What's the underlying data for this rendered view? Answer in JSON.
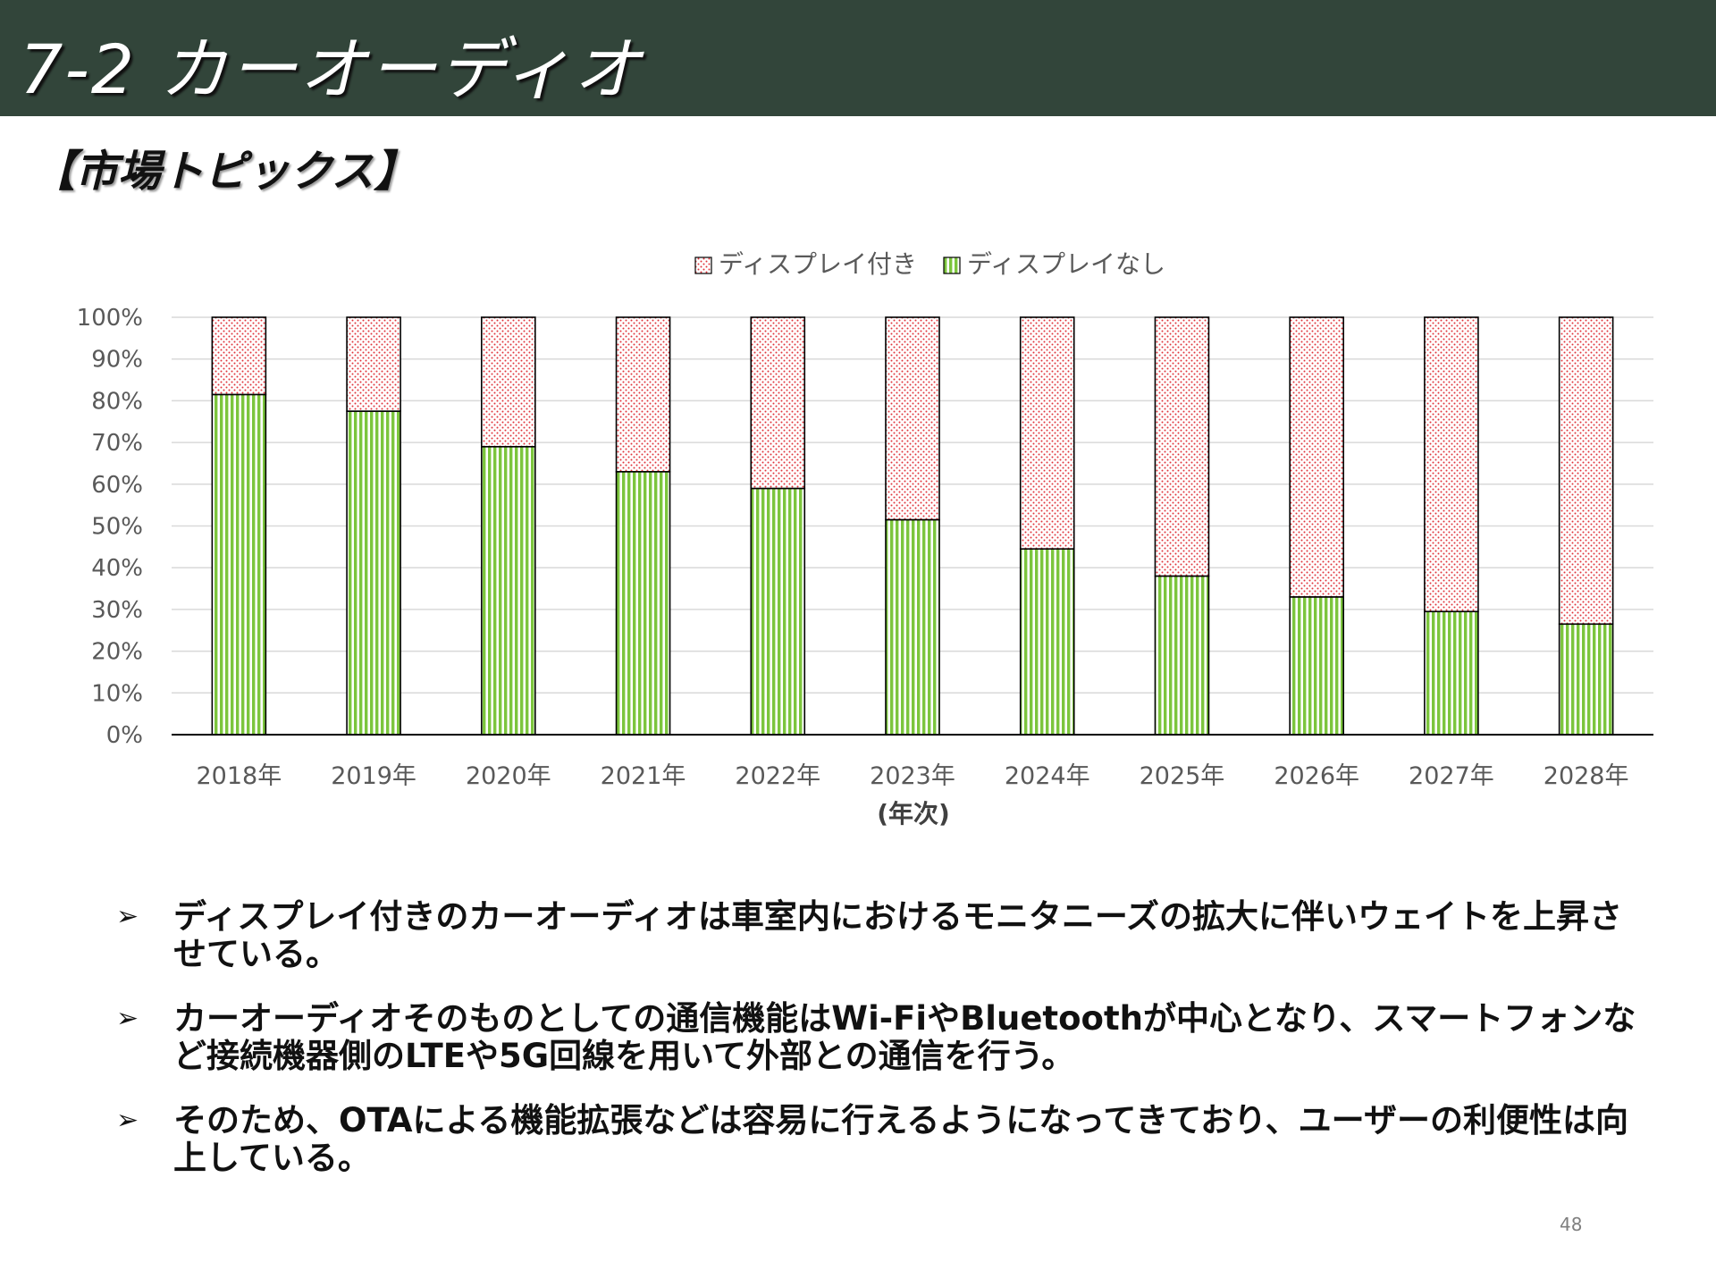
{
  "header": {
    "title": "7-2 カーオーディオ"
  },
  "section": {
    "heading": "【市場トピックス】"
  },
  "chart_data": {
    "type": "bar",
    "stacked": true,
    "categories": [
      "2018年",
      "2019年",
      "2020年",
      "2021年",
      "2022年",
      "2023年",
      "2024年",
      "2025年",
      "2026年",
      "2027年",
      "2028年"
    ],
    "series": [
      {
        "name": "ディスプレイ付き",
        "values": [
          18.5,
          22.5,
          31,
          37,
          41,
          48.5,
          55.5,
          62,
          67,
          70.5,
          73.5
        ],
        "color": "#e0343c",
        "pattern": "dots",
        "role": "upper segment"
      },
      {
        "name": "ディスプレイなし",
        "values": [
          81.5,
          77.5,
          69,
          63,
          59,
          51.5,
          44.5,
          38,
          33,
          29.5,
          26.5
        ],
        "color": "#7cc53d",
        "pattern": "vertical-stripes",
        "role": "lower segment"
      }
    ],
    "y_ticks": [
      "0%",
      "10%",
      "20%",
      "30%",
      "40%",
      "50%",
      "60%",
      "70%",
      "80%",
      "90%",
      "100%"
    ],
    "ylim": [
      0,
      100
    ],
    "xlabel": "(年次)",
    "ylabel": "",
    "legend_position": "top-center",
    "grid": true
  },
  "bullets": [
    {
      "marker": "➢",
      "text": "ディスプレイ付きのカーオーディオは車室内におけるモニタニーズの拡大に伴いウェイトを上昇させている。"
    },
    {
      "marker": "➢",
      "text": "カーオーディオそのものとしての通信機能はWi-FiやBluetoothが中心となり、スマートフォンなど接続機器側のLTEや5G回線を用いて外部との通信を行う。"
    },
    {
      "marker": "➢",
      "text": "そのため、OTAによる機能拡張などは容易に行えるようになってきており、ユーザーの利便性は向上している。"
    }
  ],
  "footer": {
    "page_number": "48"
  }
}
